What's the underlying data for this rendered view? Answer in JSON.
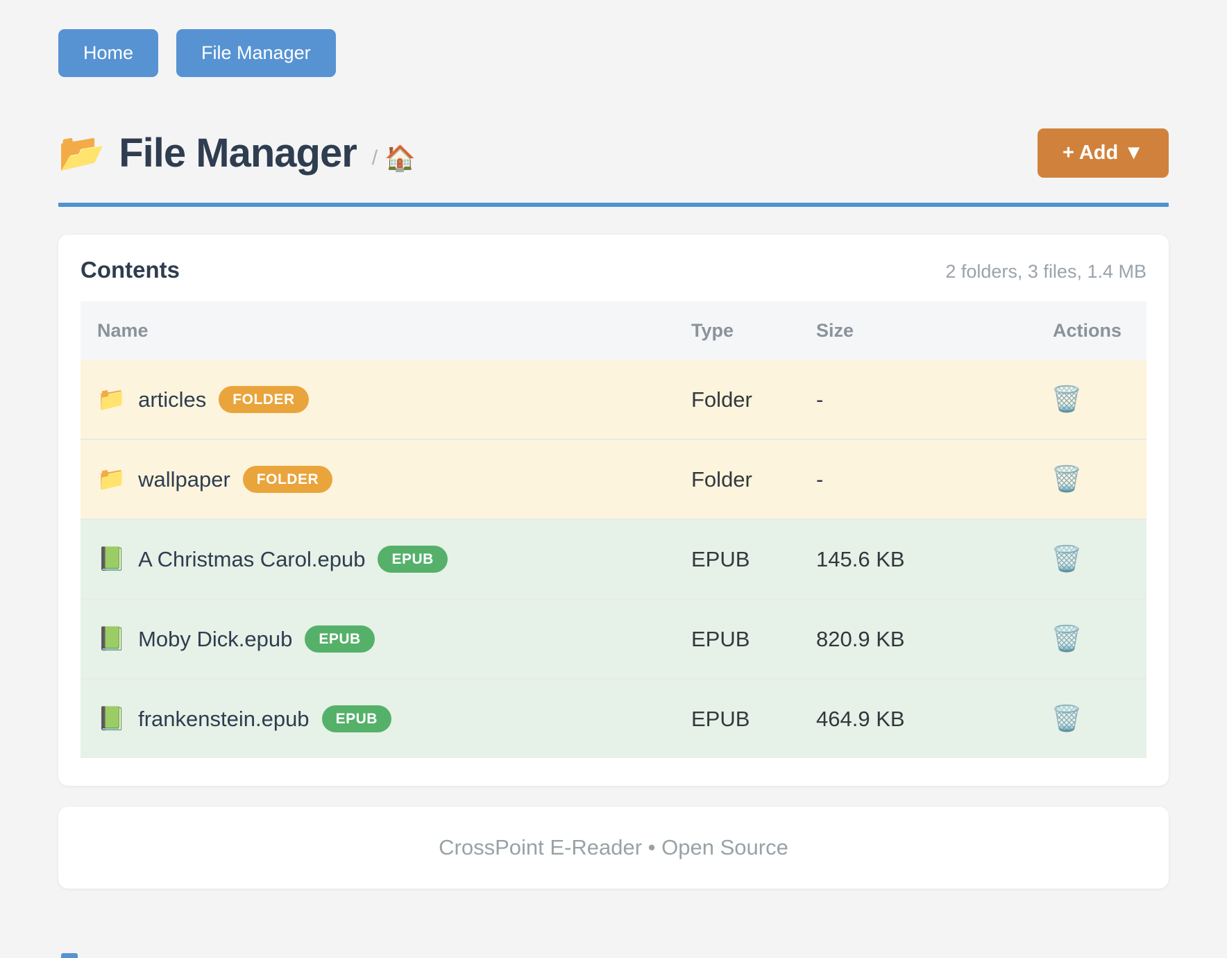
{
  "nav": {
    "home_label": "Home",
    "file_manager_label": "File Manager"
  },
  "header": {
    "title_icon": "📂",
    "title": "File Manager",
    "breadcrumb_separator": "/",
    "breadcrumb_home_icon": "🏠",
    "add_button_label": "+ Add ▼"
  },
  "contents": {
    "heading": "Contents",
    "summary": "2 folders, 3 files, 1.4 MB",
    "columns": [
      "Name",
      "Type",
      "Size",
      "Actions"
    ],
    "rows": [
      {
        "icon": "📁",
        "name": "articles",
        "badge": "FOLDER",
        "kind": "folder",
        "type": "Folder",
        "size": "-",
        "action_icon": "🗑️"
      },
      {
        "icon": "📁",
        "name": "wallpaper",
        "badge": "FOLDER",
        "kind": "folder",
        "type": "Folder",
        "size": "-",
        "action_icon": "🗑️"
      },
      {
        "icon": "📗",
        "name": "A Christmas Carol.epub",
        "badge": "EPUB",
        "kind": "epub",
        "type": "EPUB",
        "size": "145.6 KB",
        "action_icon": "🗑️"
      },
      {
        "icon": "📗",
        "name": "Moby Dick.epub",
        "badge": "EPUB",
        "kind": "epub",
        "type": "EPUB",
        "size": "820.9 KB",
        "action_icon": "🗑️"
      },
      {
        "icon": "📗",
        "name": "frankenstein.epub",
        "badge": "EPUB",
        "kind": "epub",
        "type": "EPUB",
        "size": "464.9 KB",
        "action_icon": "🗑️"
      }
    ]
  },
  "footer": {
    "text": "CrossPoint E-Reader • Open Source"
  },
  "colors": {
    "nav_button": "#5793d3",
    "accent_rule": "#4f92d1",
    "add_button": "#d0823c",
    "folder_badge": "#e9a43b",
    "epub_badge": "#55b169",
    "folder_row_bg": "#fcf4dd",
    "epub_row_bg": "#e6f1e7",
    "page_bg": "#f4f4f5"
  }
}
